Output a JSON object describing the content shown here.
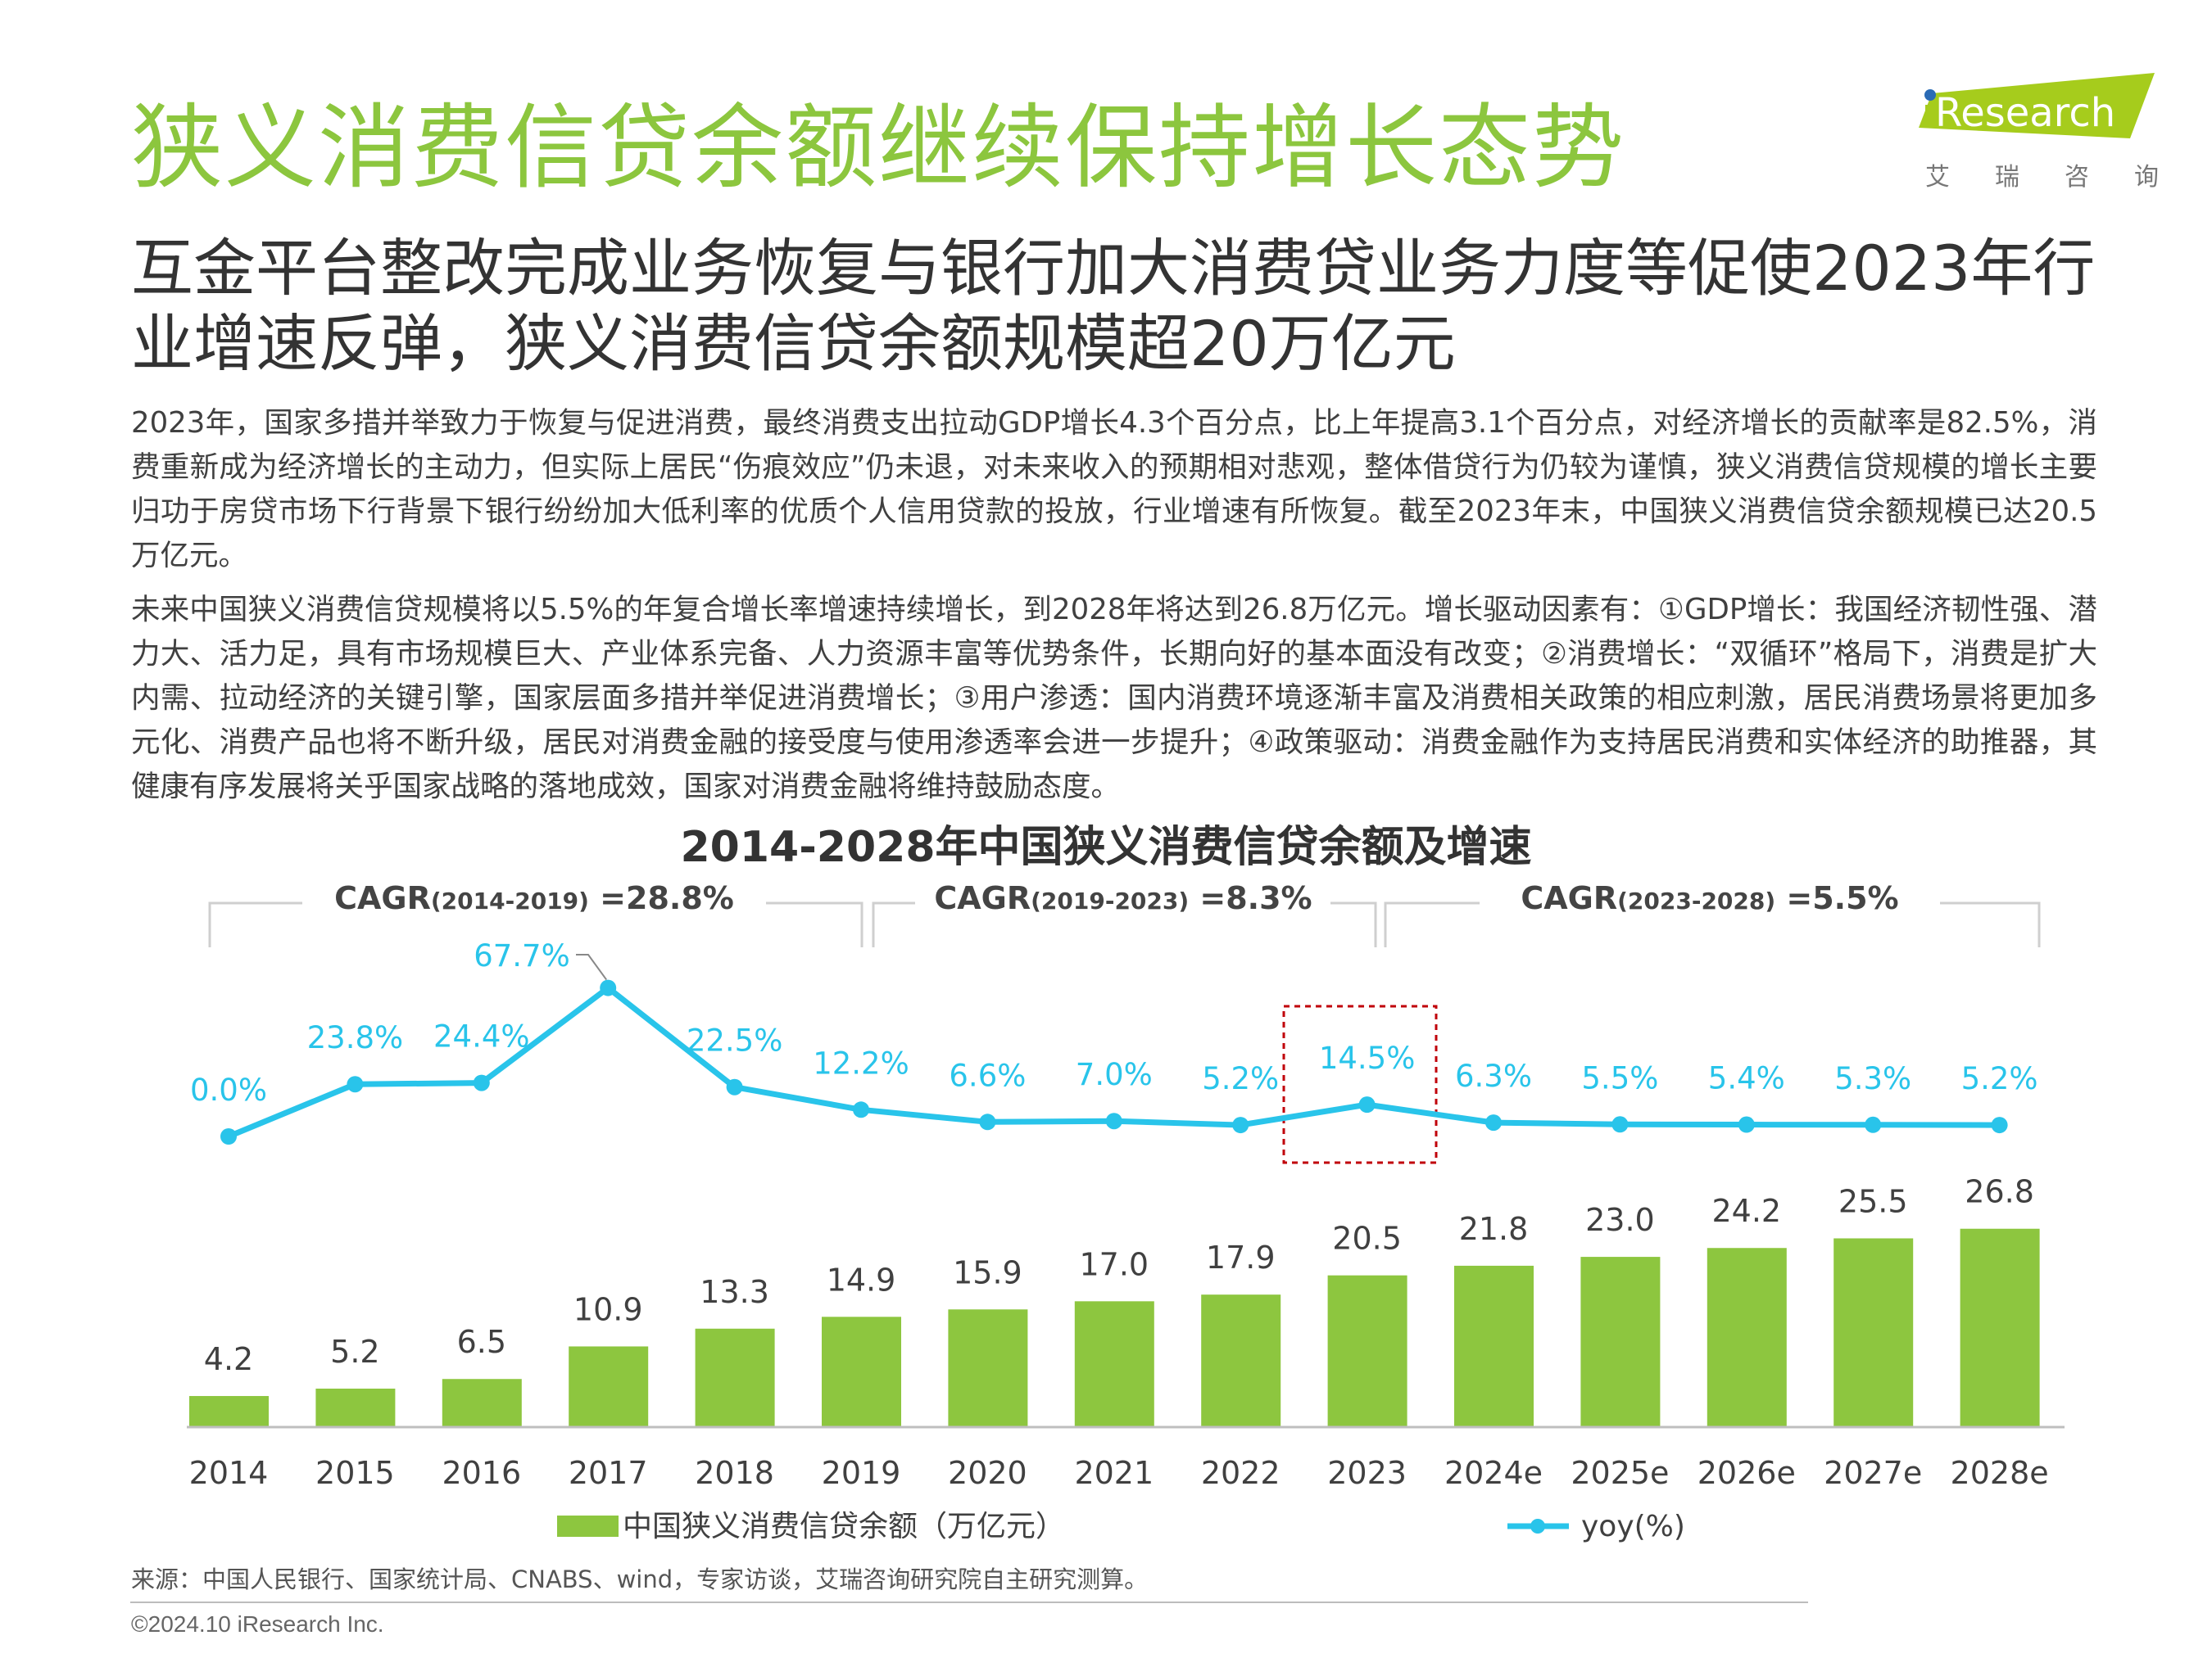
{
  "header": {
    "title": "狭义消费信贷余额继续保持增长态势",
    "subtitle": "互金平台整改完成业务恢复与银行加大消费贷业务力度等促使2023年行业增速反弹，狭义消费信贷余额规模超20万亿元"
  },
  "logo": {
    "brand": "iResearch",
    "cn": [
      "艾",
      "瑞",
      "咨",
      "询"
    ],
    "colors": {
      "green": "#a6cc1c",
      "dot": "#2a6bb5"
    }
  },
  "body": {
    "paragraphs": [
      "2023年，国家多措并举致力于恢复与促进消费，最终消费支出拉动GDP增长4.3个百分点，比上年提高3.1个百分点，对经济增长的贡献率是82.5%，消费重新成为经济增长的主动力，但实际上居民“伤痕效应”仍未退，对未来收入的预期相对悲观，整体借贷行为仍较为谨慎，狭义消费信贷规模的增长主要归功于房贷市场下行背景下银行纷纷加大低利率的优质个人信用贷款的投放，行业增速有所恢复。截至2023年末，中国狭义消费信贷余额规模已达20.5万亿元。",
      "未来中国狭义消费信贷规模将以5.5%的年复合增长率增速持续增长，到2028年将达到26.8万亿元。增长驱动因素有：①GDP增长：我国经济韧性强、潜力大、活力足，具有市场规模巨大、产业体系完备、人力资源丰富等优势条件，长期向好的基本面没有改变；②消费增长：“双循环”格局下，消费是扩大内需、拉动经济的关键引擎，国家层面多措并举促进消费增长；③用户渗透：国内消费环境逐渐丰富及消费相关政策的相应刺激，居民消费场景将更加多元化、消费产品也将不断升级，居民对消费金融的接受度与使用渗透率会进一步提升；④政策驱动：消费金融作为支持居民消费和实体经济的助推器，其健康有序发展将关乎国家战略的落地成效，国家对消费金融将维持鼓励态度。"
    ]
  },
  "chart_data": {
    "type": "bar+line",
    "title": "2014-2028年中国狭义消费信贷余额及增速",
    "categories": [
      "2014",
      "2015",
      "2016",
      "2017",
      "2018",
      "2019",
      "2020",
      "2021",
      "2022",
      "2023",
      "2024e",
      "2025e",
      "2026e",
      "2027e",
      "2028e"
    ],
    "series": [
      {
        "name": "中国狭义消费信贷余额（万亿元）",
        "kind": "bar",
        "color": "#8dc63f",
        "values": [
          4.2,
          5.2,
          6.5,
          10.9,
          13.3,
          14.9,
          15.9,
          17.0,
          17.9,
          20.5,
          21.8,
          23.0,
          24.2,
          25.5,
          26.8
        ],
        "labels": [
          "4.2",
          "5.2",
          "6.5",
          "10.9",
          "13.3",
          "14.9",
          "15.9",
          "17.0",
          "17.9",
          "20.5",
          "21.8",
          "23.0",
          "24.2",
          "25.5",
          "26.8"
        ]
      },
      {
        "name": "yoy(%)",
        "kind": "line",
        "color": "#29c4ea",
        "values": [
          0.0,
          23.8,
          24.4,
          67.7,
          22.5,
          12.2,
          6.6,
          7.0,
          5.2,
          14.5,
          6.3,
          5.5,
          5.4,
          5.3,
          5.2
        ],
        "labels": [
          "0.0%",
          "23.8%",
          "24.4%",
          "67.7%",
          "22.5%",
          "12.2%",
          "6.6%",
          "7.0%",
          "5.2%",
          "14.5%",
          "6.3%",
          "5.5%",
          "5.4%",
          "5.3%",
          "5.2%"
        ]
      }
    ],
    "cagr": [
      {
        "label": "CAGR",
        "period": "(2014-2019)",
        "value": "=28.8%"
      },
      {
        "label": "CAGR",
        "period": "(2019-2023)",
        "value": "=8.3%"
      },
      {
        "label": "CAGR",
        "period": "(2023-2028)",
        "value": "=5.5%"
      }
    ],
    "highlight": {
      "category": "2023",
      "color": "#c0000a"
    },
    "legend": [
      "中国狭义消费信贷余额（万亿元）",
      "yoy(%)"
    ],
    "legend_position": "bottom",
    "grid": false
  },
  "footer": {
    "source": "来源：中国人民银行、国家统计局、CNABS、wind，专家访谈，艾瑞咨询研究院自主研究测算。",
    "copyright": "©2024.10 iResearch Inc."
  }
}
